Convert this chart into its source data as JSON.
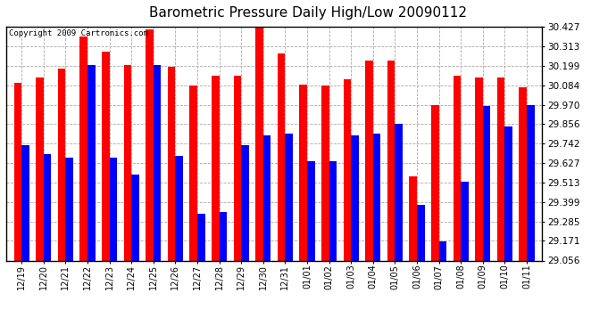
{
  "title": "Barometric Pressure Daily High/Low 20090112",
  "copyright": "Copyright 2009 Cartronics.com",
  "dates": [
    "12/19",
    "12/20",
    "12/21",
    "12/22",
    "12/23",
    "12/24",
    "12/25",
    "12/26",
    "12/27",
    "12/28",
    "12/29",
    "12/30",
    "12/31",
    "01/01",
    "01/02",
    "01/03",
    "01/04",
    "01/05",
    "01/06",
    "01/07",
    "01/08",
    "01/09",
    "01/10",
    "01/11"
  ],
  "highs": [
    30.1,
    30.13,
    30.18,
    30.37,
    30.28,
    30.2,
    30.41,
    30.19,
    30.08,
    30.14,
    30.14,
    30.43,
    30.27,
    30.09,
    30.08,
    30.12,
    30.23,
    30.23,
    29.55,
    29.97,
    30.14,
    30.13,
    30.13,
    30.07
  ],
  "lows": [
    29.73,
    29.68,
    29.66,
    30.2,
    29.66,
    29.56,
    30.2,
    29.67,
    29.33,
    29.34,
    29.73,
    29.79,
    29.8,
    29.64,
    29.64,
    29.79,
    29.8,
    29.86,
    29.38,
    29.17,
    29.52,
    29.96,
    29.84,
    29.97
  ],
  "ylim_min": 29.056,
  "ylim_max": 30.427,
  "yticks": [
    29.056,
    29.171,
    29.285,
    29.399,
    29.513,
    29.627,
    29.742,
    29.856,
    29.97,
    30.084,
    30.199,
    30.313,
    30.427
  ],
  "high_color": "#ff0000",
  "low_color": "#0000ff",
  "bg_color": "#ffffff",
  "grid_color": "#aaaaaa",
  "title_fontsize": 11,
  "copyright_fontsize": 6.5,
  "bar_width": 0.35,
  "fig_width": 6.9,
  "fig_height": 3.75,
  "dpi": 100
}
